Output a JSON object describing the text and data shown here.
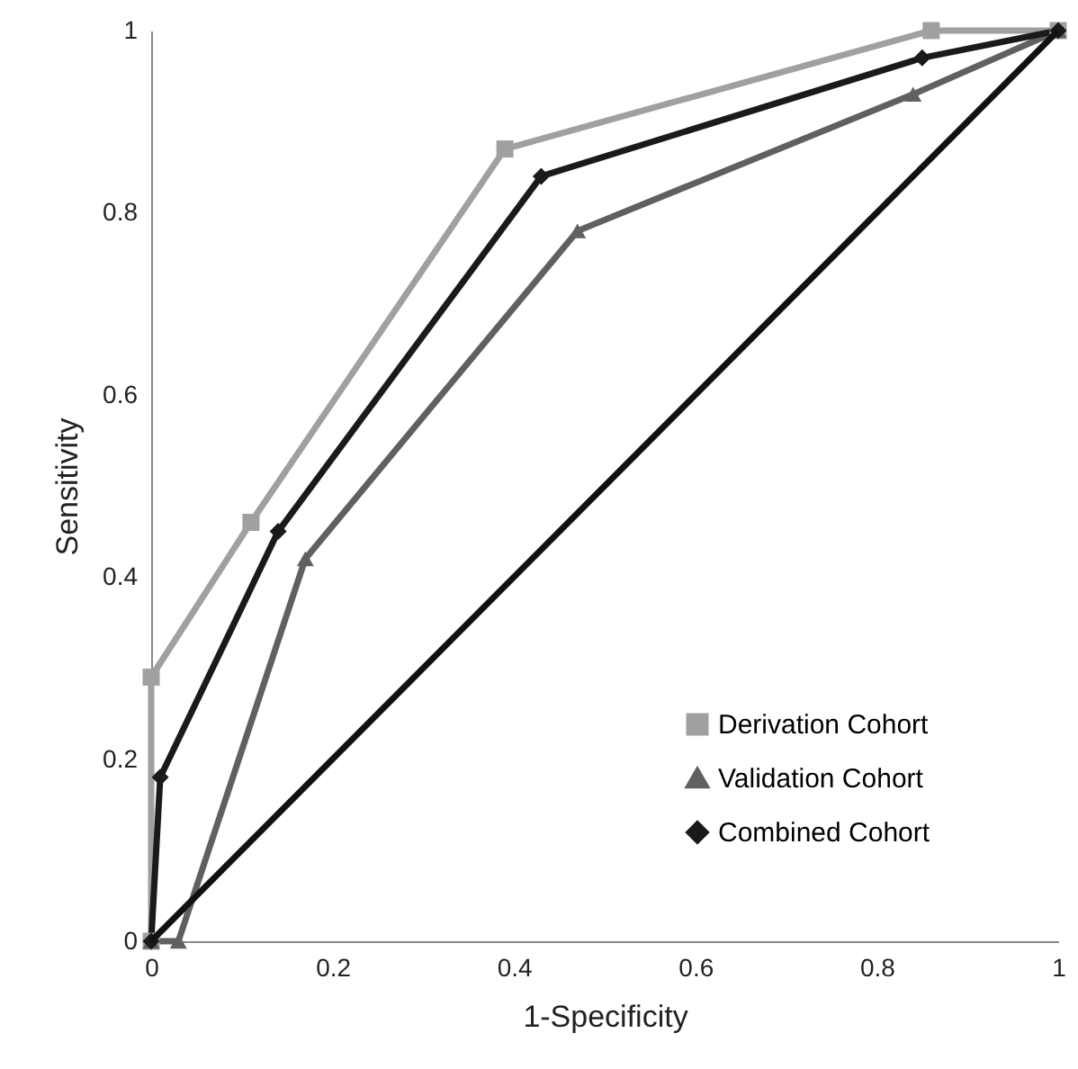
{
  "chart_data": {
    "type": "line",
    "xlabel": "1-Specificity",
    "ylabel": "Sensitivity",
    "xlim": [
      0,
      1
    ],
    "ylim": [
      0,
      1
    ],
    "xticks": [
      0,
      0.2,
      0.4,
      0.6,
      0.8,
      1
    ],
    "yticks": [
      0,
      0.2,
      0.4,
      0.6,
      0.8,
      1
    ],
    "grid": false,
    "legend": "bottom right",
    "series": [
      {
        "name": "Derivation Cohort",
        "color": "#a0a0a0",
        "marker": "square",
        "x": [
          0,
          0,
          0.11,
          0.39,
          0.86,
          1
        ],
        "values": [
          0,
          0.29,
          0.46,
          0.87,
          1,
          1
        ]
      },
      {
        "name": "Validation Cohort",
        "color": "#606060",
        "marker": "triangle",
        "x": [
          0,
          0.03,
          0.17,
          0.47,
          0.84,
          1
        ],
        "values": [
          0,
          0,
          0.42,
          0.78,
          0.93,
          1
        ]
      },
      {
        "name": "Combined Cohort",
        "color": "#1a1a1a",
        "marker": "diamond",
        "x": [
          0,
          0.01,
          0.14,
          0.43,
          0.85,
          1
        ],
        "values": [
          0,
          0.18,
          0.45,
          0.84,
          0.97,
          1
        ]
      },
      {
        "color": "#111111",
        "marker": "none",
        "x": [
          0,
          1
        ],
        "values": [
          0,
          1
        ]
      }
    ]
  }
}
